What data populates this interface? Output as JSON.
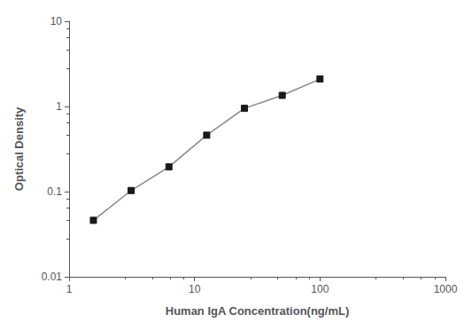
{
  "chart_data": {
    "type": "line",
    "x": [
      1.563,
      3.125,
      6.25,
      12.5,
      25,
      50,
      100
    ],
    "values": [
      0.046,
      0.103,
      0.195,
      0.46,
      0.95,
      1.35,
      2.1
    ],
    "xlabel": "Human IgA Concentration(ng/mL)",
    "ylabel": "Optical Density",
    "xlim": [
      1,
      1000
    ],
    "ylim": [
      0.01,
      10
    ],
    "xticks": [
      1,
      10,
      100,
      1000
    ],
    "yticks": [
      0.01,
      0.1,
      1,
      10
    ],
    "log": true,
    "grid": false,
    "color": "#888888",
    "colors": [
      "#1a1a1a",
      "#1a1a1a",
      "#1a1a1a",
      "#1a1a1a",
      "#1a1a1a",
      "#1a1a1a",
      "#1a1a1a"
    ],
    "marker": "square"
  }
}
